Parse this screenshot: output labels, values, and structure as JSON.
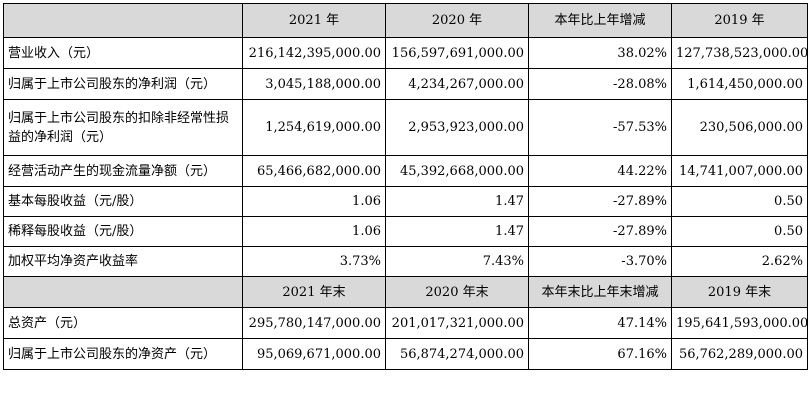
{
  "header1": {
    "label": "",
    "col1": "2021 年",
    "col2": "2020 年",
    "col3": "本年比上年增减",
    "col4": "2019 年"
  },
  "header2": {
    "label": "",
    "col1": "2021 年末",
    "col2": "2020 年末",
    "col3": "本年末比上年末增减",
    "col4": "2019 年末"
  },
  "rows1": [
    {
      "label": "营业收入（元）",
      "v2021": "216,142,395,000.00",
      "v2020": "156,597,691,000.00",
      "change": "38.02%",
      "v2019": "127,738,523,000.00"
    },
    {
      "label": "归属于上市公司股东的净利润（元）",
      "v2021": "3,045,188,000.00",
      "v2020": "4,234,267,000.00",
      "change": "-28.08%",
      "v2019": "1,614,450,000.00"
    },
    {
      "label": "归属于上市公司股东的扣除非经常性损益的净利润（元）",
      "v2021": "1,254,619,000.00",
      "v2020": "2,953,923,000.00",
      "change": "-57.53%",
      "v2019": "230,506,000.00"
    },
    {
      "label": "经营活动产生的现金流量净额（元）",
      "v2021": "65,466,682,000.00",
      "v2020": "45,392,668,000.00",
      "change": "44.22%",
      "v2019": "14,741,007,000.00"
    },
    {
      "label": "基本每股收益（元/股）",
      "v2021": "1.06",
      "v2020": "1.47",
      "change": "-27.89%",
      "v2019": "0.50"
    },
    {
      "label": "稀释每股收益（元/股）",
      "v2021": "1.06",
      "v2020": "1.47",
      "change": "-27.89%",
      "v2019": "0.50"
    },
    {
      "label": "加权平均净资产收益率",
      "v2021": "3.73%",
      "v2020": "7.43%",
      "change": "-3.70%",
      "v2019": "2.62%"
    }
  ],
  "rows2": [
    {
      "label": "总资产（元）",
      "v2021": "295,780,147,000.00",
      "v2020": "201,017,321,000.00",
      "change": "47.14%",
      "v2019": "195,641,593,000.00"
    },
    {
      "label": "归属于上市公司股东的净资产（元）",
      "v2021": "95,069,671,000.00",
      "v2020": "56,874,274,000.00",
      "change": "67.16%",
      "v2019": "56,762,289,000.00"
    }
  ]
}
